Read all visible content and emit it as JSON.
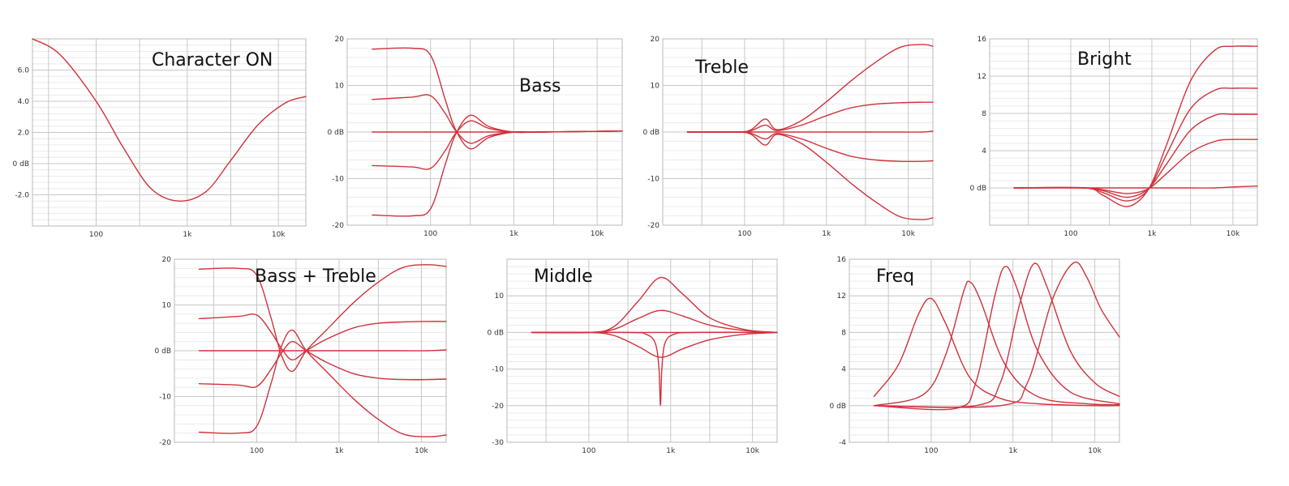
{
  "colors": {
    "curve": "#d0323c",
    "grid": "#c8c8c8",
    "background": "#ffffff"
  },
  "chart_data": [
    {
      "type": "line",
      "title": "Character ON",
      "xscale": "log",
      "xlim": [
        20,
        20000
      ],
      "xticks": [
        "100",
        "1k",
        "10k"
      ],
      "ylim": [
        -4,
        8
      ],
      "yticks": [
        {
          "value": 6,
          "label": "6.0"
        },
        {
          "value": 4,
          "label": "4.0"
        },
        {
          "value": 2,
          "label": "2.0"
        },
        {
          "value": 0,
          "label": "0 dB"
        },
        {
          "value": -2,
          "label": "-2.0"
        }
      ],
      "series": [
        {
          "x": [
            20,
            40,
            100,
            200,
            400,
            800,
            1600,
            3000,
            6000,
            12000,
            20000
          ],
          "y": [
            8.0,
            7.0,
            4.0,
            1.0,
            -1.6,
            -2.4,
            -1.8,
            0.2,
            2.5,
            3.9,
            4.3
          ]
        }
      ]
    },
    {
      "type": "line",
      "title": "Bass",
      "xscale": "log",
      "xlim": [
        10,
        20000
      ],
      "xticks": [
        "100",
        "1k",
        "10k"
      ],
      "ylim": [
        -20,
        20
      ],
      "yticks": [
        {
          "value": 20,
          "label": "20"
        },
        {
          "value": 10,
          "label": "10"
        },
        {
          "value": 0,
          "label": "0 dB"
        },
        {
          "value": -10,
          "label": "-10"
        },
        {
          "value": -20,
          "label": "-20"
        }
      ],
      "series": [
        {
          "x": [
            20,
            60,
            100,
            150,
            200,
            300,
            500,
            1000,
            2000,
            20000
          ],
          "y": [
            17.8,
            18.0,
            16.5,
            7.0,
            0.5,
            -3.6,
            -1.2,
            0,
            0,
            0.2
          ]
        },
        {
          "x": [
            20,
            60,
            100,
            150,
            200,
            300,
            500,
            1000,
            2000,
            20000
          ],
          "y": [
            7.0,
            7.5,
            7.8,
            4.0,
            0.3,
            -2.4,
            -0.8,
            0,
            0,
            0.2
          ]
        },
        {
          "x": [
            20,
            60,
            100,
            150,
            200,
            300,
            500,
            1000,
            2000,
            20000
          ],
          "y": [
            0,
            0,
            0,
            0,
            0,
            0,
            0,
            0,
            0,
            0.2
          ]
        },
        {
          "x": [
            20,
            60,
            100,
            150,
            200,
            300,
            500,
            1000,
            2000,
            20000
          ],
          "y": [
            -7.2,
            -7.5,
            -7.8,
            -4.0,
            -0.3,
            2.4,
            0.8,
            0,
            0,
            0.2
          ]
        },
        {
          "x": [
            20,
            60,
            100,
            150,
            200,
            300,
            500,
            1000,
            2000,
            20000
          ],
          "y": [
            -17.8,
            -18.0,
            -16.5,
            -7.0,
            -0.5,
            3.6,
            1.2,
            0,
            0,
            0.2
          ]
        }
      ]
    },
    {
      "type": "line",
      "title": "Treble",
      "xscale": "log",
      "xlim": [
        10,
        20000
      ],
      "xticks": [
        "100",
        "1k",
        "10k"
      ],
      "ylim": [
        -20,
        20
      ],
      "yticks": [
        {
          "value": 20,
          "label": "20"
        },
        {
          "value": 10,
          "label": "10"
        },
        {
          "value": 0,
          "label": "0 dB"
        },
        {
          "value": -10,
          "label": "-10"
        },
        {
          "value": -20,
          "label": "-20"
        }
      ],
      "series": [
        {
          "x": [
            20,
            80,
            120,
            180,
            250,
            500,
            1000,
            2000,
            4000,
            8000,
            15000,
            20000
          ],
          "y": [
            0,
            0,
            0.5,
            2.8,
            0.5,
            2.5,
            6.5,
            11.0,
            15.0,
            18.2,
            18.8,
            18.4
          ]
        },
        {
          "x": [
            20,
            80,
            120,
            180,
            250,
            500,
            1000,
            2000,
            4000,
            8000,
            15000,
            20000
          ],
          "y": [
            0,
            0,
            0.3,
            1.5,
            0.3,
            1.5,
            3.5,
            5.2,
            6.0,
            6.3,
            6.4,
            6.4
          ]
        },
        {
          "x": [
            20,
            80,
            120,
            180,
            250,
            500,
            1000,
            2000,
            4000,
            8000,
            15000,
            20000
          ],
          "y": [
            0,
            0,
            0,
            0,
            0,
            0,
            0,
            0,
            0,
            0,
            0,
            0.2
          ]
        },
        {
          "x": [
            20,
            80,
            120,
            180,
            250,
            500,
            1000,
            2000,
            4000,
            8000,
            15000,
            20000
          ],
          "y": [
            0,
            0,
            -0.3,
            -1.5,
            -0.3,
            -1.5,
            -3.5,
            -5.2,
            -6.0,
            -6.3,
            -6.3,
            -6.2
          ]
        },
        {
          "x": [
            20,
            80,
            120,
            180,
            250,
            500,
            1000,
            2000,
            4000,
            8000,
            15000,
            20000
          ],
          "y": [
            0,
            0,
            -0.5,
            -2.8,
            -0.5,
            -2.5,
            -6.5,
            -11.0,
            -15.0,
            -18.2,
            -18.8,
            -18.4
          ]
        }
      ]
    },
    {
      "type": "line",
      "title": "Bright",
      "xscale": "log",
      "xlim": [
        10,
        20000
      ],
      "xticks": [
        "100",
        "1k",
        "10k"
      ],
      "ylim": [
        -4,
        16
      ],
      "yticks": [
        {
          "value": 16,
          "label": "16"
        },
        {
          "value": 12,
          "label": "12"
        },
        {
          "value": 8,
          "label": "8"
        },
        {
          "value": 4,
          "label": "4"
        },
        {
          "value": 0,
          "label": "0 dB"
        }
      ],
      "series": [
        {
          "x": [
            20,
            150,
            250,
            500,
            900,
            1500,
            3000,
            6000,
            10000,
            20000
          ],
          "y": [
            0,
            0,
            -0.8,
            -2.0,
            -0.2,
            4.5,
            11.5,
            14.8,
            15.2,
            15.2
          ]
        },
        {
          "x": [
            20,
            150,
            250,
            500,
            900,
            1500,
            3000,
            6000,
            10000,
            20000
          ],
          "y": [
            0,
            0,
            -0.5,
            -1.4,
            -0.2,
            3.5,
            8.5,
            10.5,
            10.7,
            10.7
          ]
        },
        {
          "x": [
            20,
            150,
            250,
            500,
            900,
            1500,
            3000,
            6000,
            10000,
            20000
          ],
          "y": [
            0,
            0,
            -0.3,
            -1.0,
            -0.1,
            2.5,
            6.2,
            7.8,
            7.9,
            7.9
          ]
        },
        {
          "x": [
            20,
            150,
            250,
            500,
            900,
            1500,
            3000,
            6000,
            10000,
            20000
          ],
          "y": [
            0,
            0,
            -0.2,
            -0.6,
            -0.1,
            1.5,
            3.8,
            5.0,
            5.2,
            5.2
          ]
        },
        {
          "x": [
            20,
            150,
            250,
            500,
            900,
            1500,
            3000,
            6000,
            10000,
            20000
          ],
          "y": [
            0,
            0,
            0,
            0,
            0,
            0,
            0,
            0,
            0.1,
            0.2
          ]
        }
      ]
    },
    {
      "type": "line",
      "title": "Bass + Treble",
      "xscale": "log",
      "xlim": [
        10,
        20000
      ],
      "xticks": [
        "100",
        "1k",
        "10k"
      ],
      "ylim": [
        -20,
        20
      ],
      "yticks": [
        {
          "value": 20,
          "label": "20"
        },
        {
          "value": 10,
          "label": "10"
        },
        {
          "value": 0,
          "label": "0 dB"
        },
        {
          "value": -10,
          "label": "-10"
        },
        {
          "value": -20,
          "label": "-20"
        }
      ],
      "series": [
        {
          "x": [
            20,
            60,
            100,
            150,
            200,
            270,
            400,
            700,
            1500,
            3000,
            6000,
            12000,
            20000
          ],
          "y": [
            17.8,
            18.0,
            16.5,
            7.0,
            -1.0,
            -4.5,
            0,
            4.5,
            10.5,
            15.0,
            18.2,
            18.8,
            18.4
          ]
        },
        {
          "x": [
            20,
            60,
            100,
            150,
            200,
            270,
            400,
            700,
            1500,
            3000,
            6000,
            12000,
            20000
          ],
          "y": [
            7.0,
            7.5,
            7.8,
            4.0,
            0.5,
            -2.0,
            0,
            2.5,
            5.0,
            6.0,
            6.3,
            6.4,
            6.4
          ]
        },
        {
          "x": [
            20,
            60,
            100,
            150,
            200,
            270,
            400,
            700,
            1500,
            3000,
            6000,
            12000,
            20000
          ],
          "y": [
            0,
            0,
            0,
            0,
            0,
            0,
            0,
            0,
            0,
            0,
            0,
            0,
            0.2
          ]
        },
        {
          "x": [
            20,
            60,
            100,
            150,
            200,
            270,
            400,
            700,
            1500,
            3000,
            6000,
            12000,
            20000
          ],
          "y": [
            -7.2,
            -7.5,
            -7.8,
            -4.0,
            -0.5,
            2.0,
            0,
            -2.5,
            -5.0,
            -6.0,
            -6.3,
            -6.3,
            -6.2
          ]
        },
        {
          "x": [
            20,
            60,
            100,
            150,
            200,
            270,
            400,
            700,
            1500,
            3000,
            6000,
            12000,
            20000
          ],
          "y": [
            -17.8,
            -18.0,
            -16.5,
            -7.0,
            1.0,
            4.5,
            0,
            -4.5,
            -10.5,
            -15.0,
            -18.2,
            -18.8,
            -18.4
          ]
        }
      ]
    },
    {
      "type": "line",
      "title": "Middle",
      "xscale": "log",
      "xlim": [
        10,
        20000
      ],
      "xticks": [
        "100",
        "1k",
        "10k"
      ],
      "ylim": [
        -30,
        20
      ],
      "yticks": [
        {
          "value": 20,
          "label": ""
        },
        {
          "value": 10,
          "label": "10"
        },
        {
          "value": 0,
          "label": "0 dB"
        },
        {
          "value": -10,
          "label": "-10"
        },
        {
          "value": -20,
          "label": "-20"
        },
        {
          "value": -30,
          "label": "-30"
        }
      ],
      "series": [
        {
          "x": [
            20,
            100,
            200,
            400,
            750,
            1400,
            3000,
            8000,
            20000
          ],
          "y": [
            0,
            0,
            1.5,
            8.5,
            15.0,
            10.5,
            4.0,
            0.8,
            0
          ]
        },
        {
          "x": [
            20,
            100,
            200,
            400,
            750,
            1400,
            3000,
            8000,
            20000
          ],
          "y": [
            0,
            0,
            0.8,
            3.8,
            6.0,
            4.5,
            2.0,
            0.5,
            0
          ]
        },
        {
          "x": [
            20,
            100,
            200,
            400,
            750,
            1400,
            3000,
            8000,
            20000
          ],
          "y": [
            0,
            0,
            0,
            0,
            0,
            0,
            0,
            0,
            0
          ]
        },
        {
          "x": [
            20,
            100,
            200,
            400,
            750,
            1400,
            3000,
            8000,
            20000
          ],
          "y": [
            0,
            0,
            -0.8,
            -3.8,
            -6.8,
            -4.5,
            -2.0,
            -0.5,
            0
          ]
        },
        {
          "x": [
            20,
            300,
            500,
            650,
            720,
            750,
            780,
            850,
            1100,
            2000,
            20000
          ],
          "y": [
            0,
            0,
            -0.5,
            -3.0,
            -10.0,
            -20.0,
            -10.0,
            -3.0,
            -0.5,
            0,
            0
          ]
        }
      ]
    },
    {
      "type": "line",
      "title": "Freq",
      "xscale": "log",
      "xlim": [
        10,
        20000
      ],
      "xticks": [
        "100",
        "1k",
        "10k"
      ],
      "ylim": [
        -4,
        16
      ],
      "yticks": [
        {
          "value": 16,
          "label": "16"
        },
        {
          "value": 12,
          "label": "12"
        },
        {
          "value": 8,
          "label": "8"
        },
        {
          "value": 4,
          "label": "4"
        },
        {
          "value": 0,
          "label": "0 dB"
        },
        {
          "value": -4,
          "label": "-4"
        }
      ],
      "series": [
        {
          "x": [
            20,
            40,
            70,
            100,
            150,
            300,
            700,
            2000,
            10000,
            20000
          ],
          "y": [
            1.0,
            4.5,
            10.0,
            11.7,
            9.0,
            3.0,
            0.8,
            0.2,
            0,
            0
          ]
        },
        {
          "x": [
            20,
            80,
            150,
            250,
            300,
            400,
            800,
            2000,
            8000,
            20000
          ],
          "y": [
            0,
            1.2,
            5.5,
            12.5,
            13.5,
            11.5,
            4.5,
            1.0,
            0.2,
            0.1
          ]
        },
        {
          "x": [
            20,
            200,
            350,
            600,
            800,
            1100,
            2000,
            5000,
            20000
          ],
          "y": [
            0,
            -0.3,
            2.5,
            12.0,
            15.2,
            13.0,
            6.0,
            1.5,
            0.2
          ]
        },
        {
          "x": [
            20,
            350,
            700,
            1200,
            1800,
            2600,
            5000,
            10000,
            20000
          ],
          "y": [
            0,
            0,
            2.5,
            11.0,
            15.5,
            13.0,
            6.0,
            2.5,
            1.0
          ]
        },
        {
          "x": [
            20,
            700,
            1500,
            3000,
            5500,
            8000,
            12000,
            20000
          ],
          "y": [
            0,
            0,
            2.5,
            11.5,
            15.6,
            14.0,
            10.5,
            7.5
          ]
        }
      ]
    }
  ]
}
